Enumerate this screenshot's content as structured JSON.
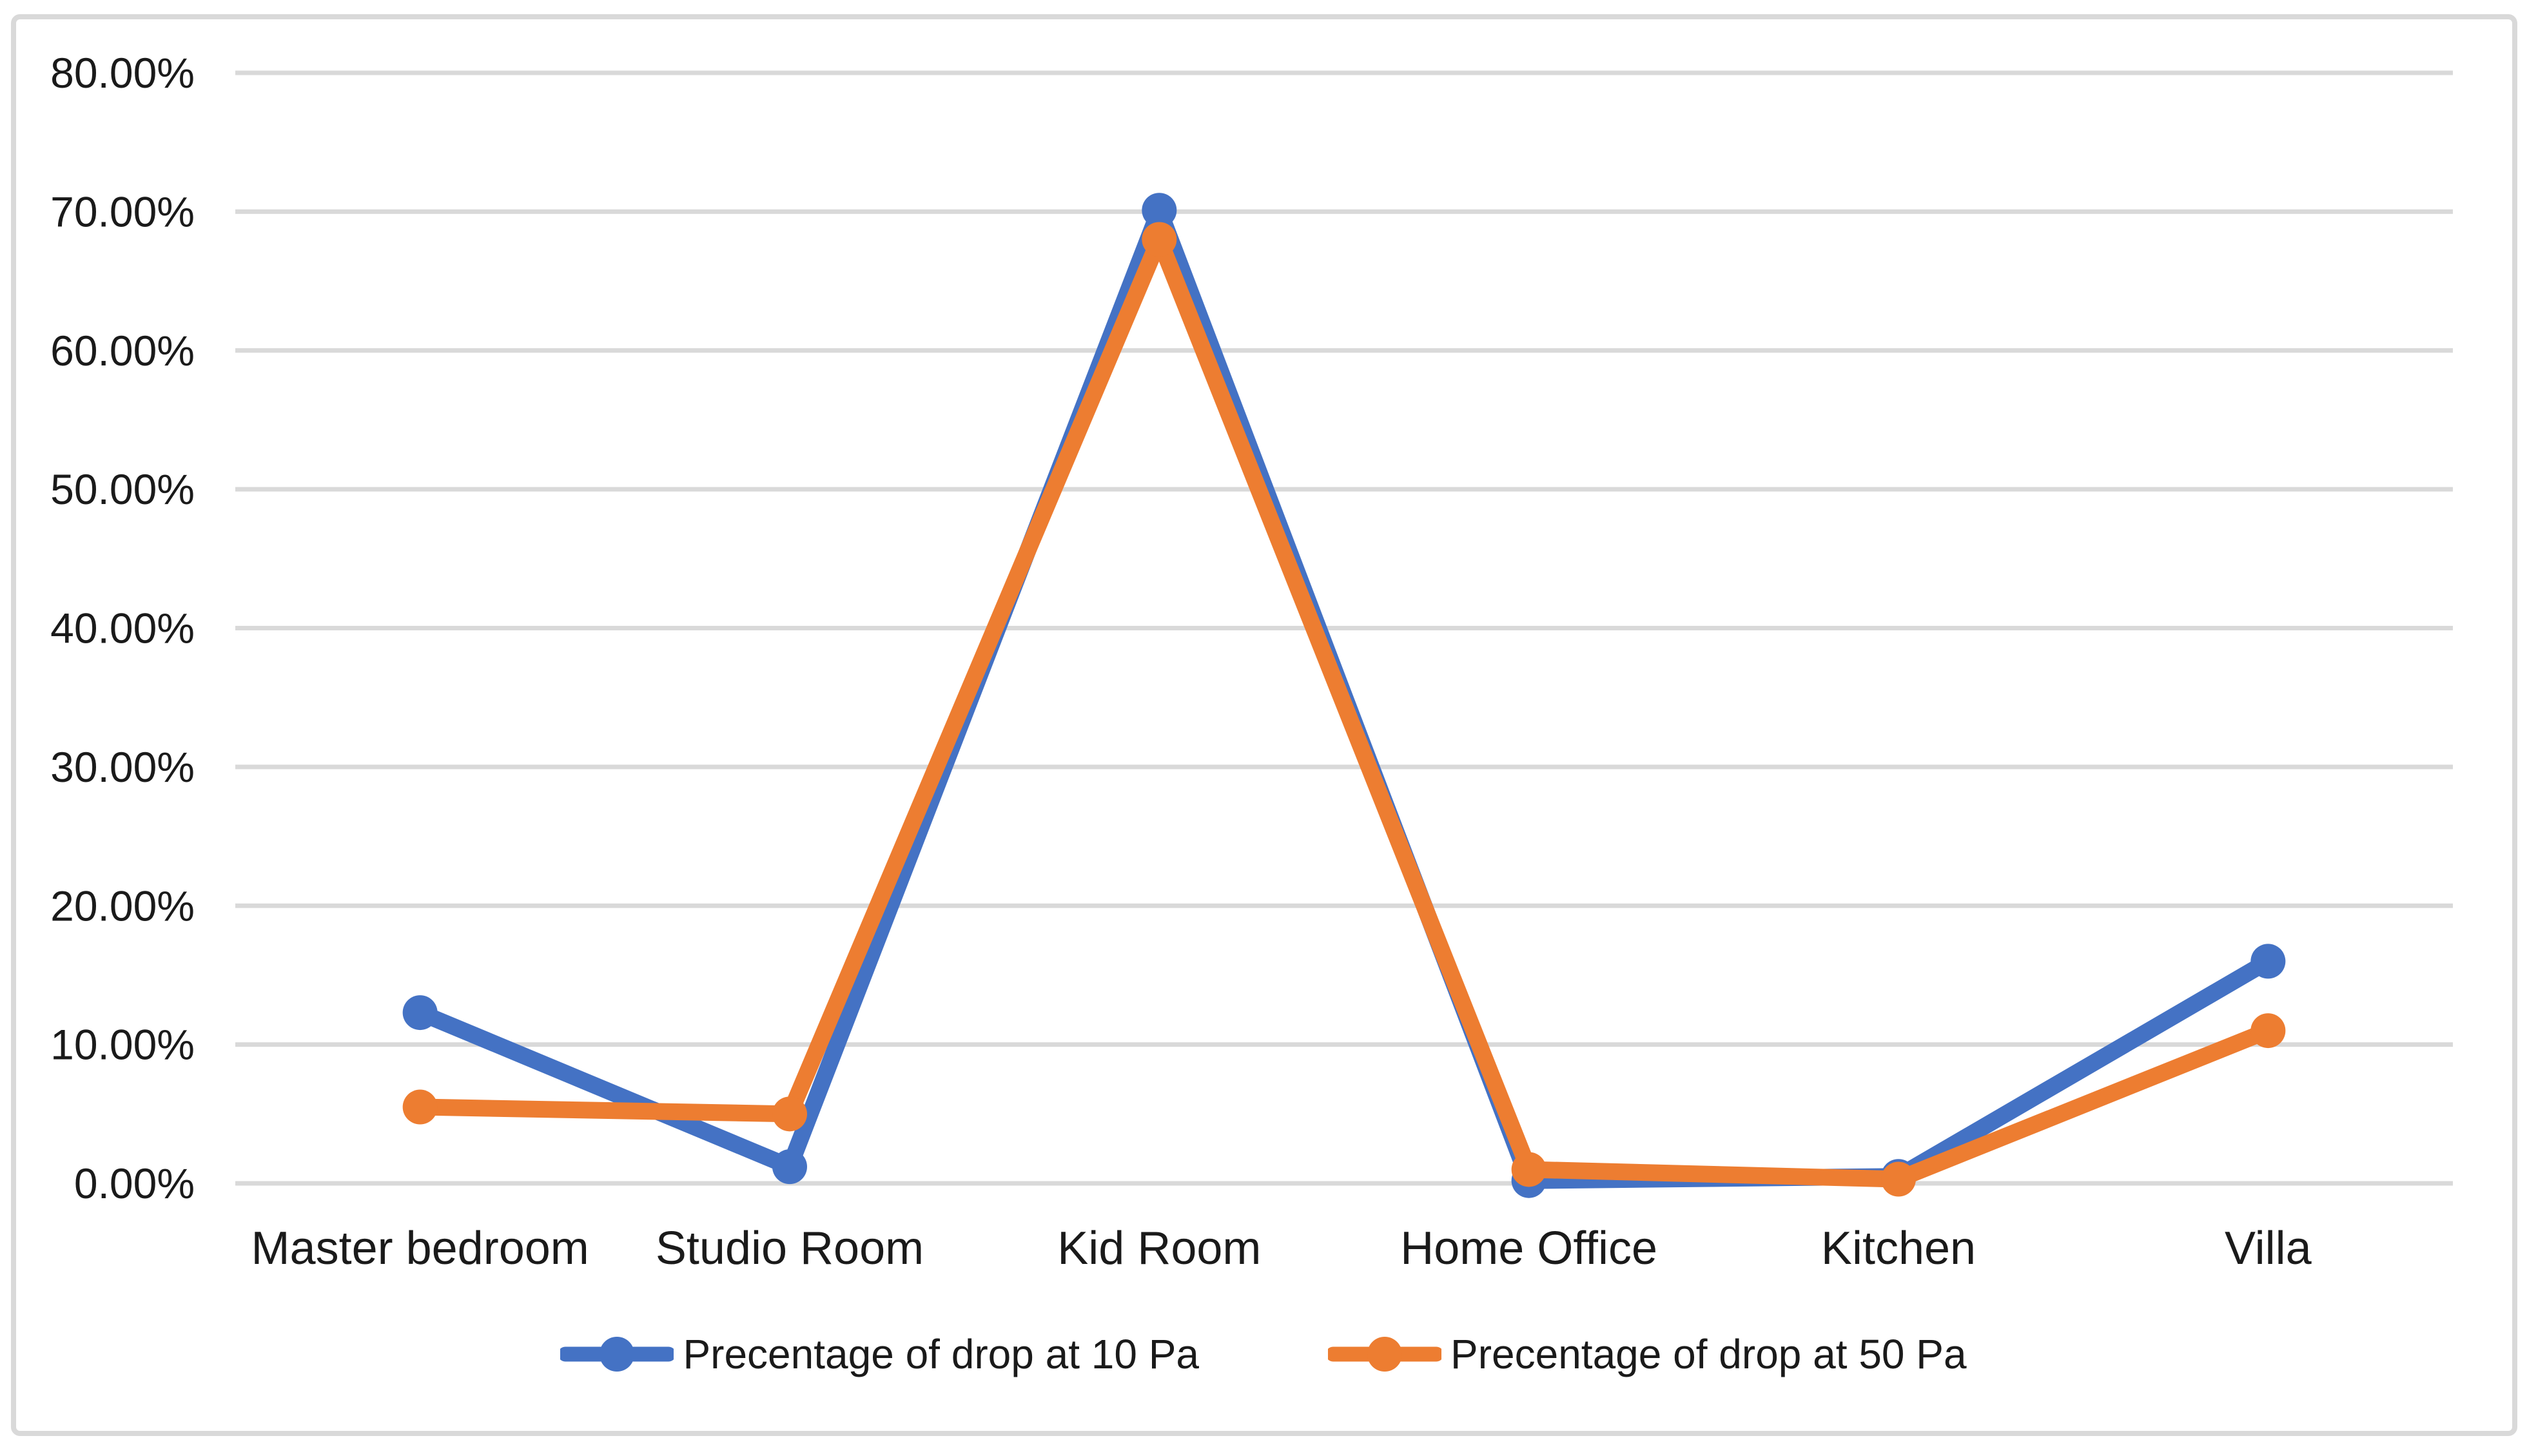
{
  "figure": {
    "background": "#ffffff",
    "frame_border_color": "#d9d9d9"
  },
  "chart_data": {
    "type": "line",
    "title": "",
    "xlabel": "",
    "ylabel": "",
    "categories": [
      "Master bedroom",
      "Studio Room",
      "Kid Room",
      "Home Office",
      "Kitchen",
      "Villa"
    ],
    "series": [
      {
        "name": "Precentage of drop at 10 Pa",
        "color": "#4472C4",
        "values": [
          12.3,
          1.2,
          70.1,
          0.2,
          0.5,
          16.0
        ]
      },
      {
        "name": "Precentage of drop at 50 Pa",
        "color": "#ED7D31",
        "values": [
          5.5,
          5.0,
          68.0,
          1.0,
          0.3,
          11.0
        ]
      }
    ],
    "ylim": [
      0,
      80
    ],
    "ytick_step": 10,
    "ytick_labels": [
      "0.00%",
      "10.00%",
      "20.00%",
      "30.00%",
      "40.00%",
      "50.00%",
      "60.00%",
      "70.00%",
      "80.00%"
    ],
    "grid": "horizontal",
    "gridline_color": "#d9d9d9",
    "text_color": "#1a1a1a",
    "legend_position": "bottom",
    "marker": "circle"
  }
}
